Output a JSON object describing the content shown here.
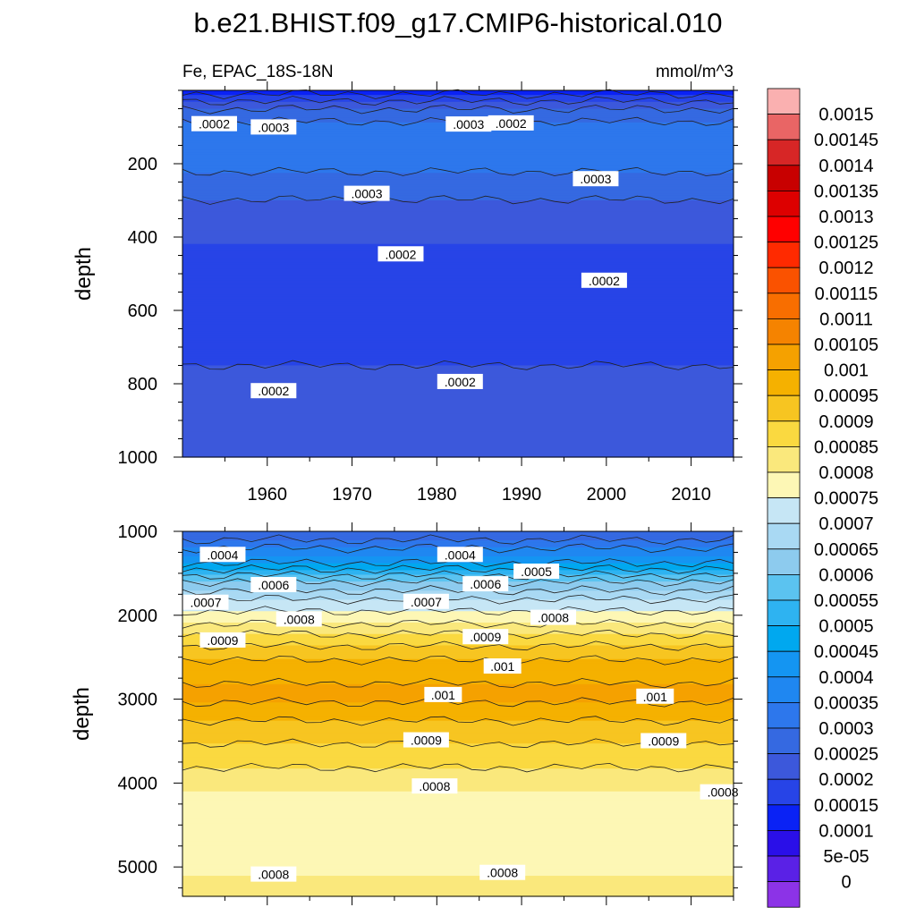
{
  "title": "b.e21.BHIST.f09_g17.CMIP6-historical.010",
  "chart_data": [
    {
      "type": "heatmap",
      "panel": "upper",
      "subtitle_left": "Fe, EPAC_18S-18N",
      "subtitle_right": "mmol/m^3",
      "xlabel": "",
      "ylabel": "depth",
      "x_ticks": [
        1960,
        1970,
        1980,
        1990,
        2000,
        2010
      ],
      "y_ticks": [
        200,
        400,
        600,
        800,
        1000
      ],
      "xlim": [
        1950,
        2015
      ],
      "ylim": [
        0,
        1000
      ],
      "y_inverted": true,
      "depth_profile": [
        {
          "depth": 0,
          "value": 0.00012
        },
        {
          "depth": 20,
          "value": 0.00018
        },
        {
          "depth": 60,
          "value": 0.00027
        },
        {
          "depth": 110,
          "value": 0.00033
        },
        {
          "depth": 180,
          "value": 0.00033
        },
        {
          "depth": 250,
          "value": 0.00028
        },
        {
          "depth": 330,
          "value": 0.00023
        },
        {
          "depth": 420,
          "value": 0.0002
        },
        {
          "depth": 550,
          "value": 0.00016
        },
        {
          "depth": 700,
          "value": 0.00019
        },
        {
          "depth": 850,
          "value": 0.00022
        },
        {
          "depth": 1000,
          "value": 0.00025
        }
      ],
      "contour_labels": [
        {
          "text": ".0002",
          "x": 1951,
          "depth": 92
        },
        {
          "text": ".0003",
          "x": 1958,
          "depth": 101
        },
        {
          "text": ".0003",
          "x": 1981,
          "depth": 93
        },
        {
          "text": ".0002",
          "x": 1986,
          "depth": 90
        },
        {
          "text": ".0003",
          "x": 1996,
          "depth": 242
        },
        {
          "text": ".0003",
          "x": 1969,
          "depth": 282
        },
        {
          "text": ".0002",
          "x": 1973,
          "depth": 447
        },
        {
          "text": ".0002",
          "x": 1997,
          "depth": 519
        },
        {
          "text": ".0002",
          "x": 1958,
          "depth": 820
        },
        {
          "text": ".0002",
          "x": 1980,
          "depth": 795
        }
      ]
    },
    {
      "type": "heatmap",
      "panel": "lower",
      "xlabel": "",
      "ylabel": "depth",
      "y_ticks": [
        1000,
        2000,
        3000,
        4000,
        5000
      ],
      "xlim": [
        1950,
        2015
      ],
      "ylim": [
        1000,
        5350
      ],
      "y_inverted": true,
      "depth_profile": [
        {
          "depth": 1000,
          "value": 0.00025
        },
        {
          "depth": 1300,
          "value": 0.0004
        },
        {
          "depth": 1600,
          "value": 0.0006
        },
        {
          "depth": 1850,
          "value": 0.00072
        },
        {
          "depth": 2050,
          "value": 0.00078
        },
        {
          "depth": 2300,
          "value": 0.00088
        },
        {
          "depth": 2600,
          "value": 0.00097
        },
        {
          "depth": 2950,
          "value": 0.00102
        },
        {
          "depth": 3300,
          "value": 0.00094
        },
        {
          "depth": 3700,
          "value": 0.00087
        },
        {
          "depth": 4100,
          "value": 0.0008
        },
        {
          "depth": 4700,
          "value": 0.00077
        },
        {
          "depth": 5100,
          "value": 0.0008
        },
        {
          "depth": 5350,
          "value": 0.00083
        }
      ],
      "contour_labels": [
        {
          "text": ".0004",
          "x": 1952,
          "depth": 1280
        },
        {
          "text": ".0004",
          "x": 1980,
          "depth": 1280
        },
        {
          "text": ".0005",
          "x": 1989,
          "depth": 1480
        },
        {
          "text": ".0006",
          "x": 1958,
          "depth": 1640
        },
        {
          "text": ".0006",
          "x": 1983,
          "depth": 1630
        },
        {
          "text": ".0007",
          "x": 1950,
          "depth": 1850
        },
        {
          "text": ".0007",
          "x": 1976,
          "depth": 1840
        },
        {
          "text": ".0008",
          "x": 1961,
          "depth": 2050
        },
        {
          "text": ".0008",
          "x": 1991,
          "depth": 2030
        },
        {
          "text": ".0009",
          "x": 1952,
          "depth": 2300
        },
        {
          "text": ".0009",
          "x": 1983,
          "depth": 2260
        },
        {
          "text": ".001",
          "x": 1985,
          "depth": 2610
        },
        {
          "text": ".001",
          "x": 1978,
          "depth": 2950
        },
        {
          "text": ".001",
          "x": 2003,
          "depth": 2970
        },
        {
          "text": ".0009",
          "x": 1976,
          "depth": 3490
        },
        {
          "text": ".0009",
          "x": 2004,
          "depth": 3500
        },
        {
          "text": ".0008",
          "x": 1977,
          "depth": 4040
        },
        {
          "text": ".0008",
          "x": 2011,
          "depth": 4110
        },
        {
          "text": ".0008",
          "x": 1958,
          "depth": 5090
        },
        {
          "text": ".0008",
          "x": 1985,
          "depth": 5070
        }
      ]
    }
  ],
  "colorbar": {
    "labels": [
      "0.0015",
      "0.00145",
      "0.0014",
      "0.00135",
      "0.0013",
      "0.00125",
      "0.0012",
      "0.00115",
      "0.0011",
      "0.00105",
      "0.001",
      "0.00095",
      "0.0009",
      "0.00085",
      "0.0008",
      "0.00075",
      "0.0007",
      "0.00065",
      "0.0006",
      "0.00055",
      "0.0005",
      "0.00045",
      "0.0004",
      "0.00035",
      "0.0003",
      "0.00025",
      "0.0002",
      "0.00015",
      "0.0001",
      "5e-05",
      "0"
    ],
    "colors": [
      "#fab0b0",
      "#e96565",
      "#d72626",
      "#c80000",
      "#dd0000",
      "#ff0000",
      "#ff2a00",
      "#fa5200",
      "#f86e00",
      "#f58300",
      "#f5a100",
      "#f5b100",
      "#f7c521",
      "#fad940",
      "#fae87c",
      "#fdf7b5",
      "#c6e6f5",
      "#a9d9f3",
      "#8dcbee",
      "#5bc3f0",
      "#2eb3f1",
      "#00a8ef",
      "#1495f2",
      "#1f87f1",
      "#2d77ec",
      "#3569e1",
      "#3c58db",
      "#2744e7",
      "#0a22f5",
      "#2a0fe8",
      "#5a21e6",
      "#8c33e7"
    ]
  }
}
